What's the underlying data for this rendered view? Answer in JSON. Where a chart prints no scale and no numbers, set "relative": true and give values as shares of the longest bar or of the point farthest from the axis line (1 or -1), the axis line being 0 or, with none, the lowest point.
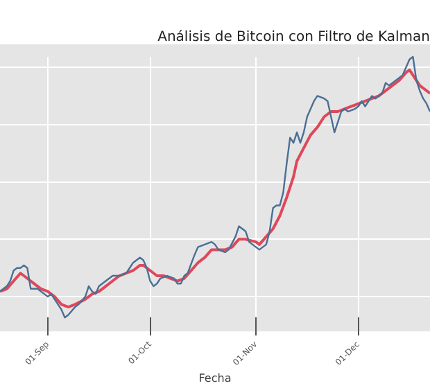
{
  "chart_data": {
    "type": "line",
    "title": "Análisis de Bitcoin con Filtro de Kalman",
    "xlabel": "Fecha",
    "relative": true,
    "grid": true,
    "marker": "none",
    "line_style": "solid",
    "xlim": [
      "--08-18",
      "--12-22"
    ],
    "xticks": [
      {
        "value": "--09-01",
        "label": "01-Sep"
      },
      {
        "value": "--10-01",
        "label": "01-Oct"
      },
      {
        "value": "--11-01",
        "label": "01-Nov"
      },
      {
        "value": "--12-01",
        "label": "01-Dec"
      }
    ],
    "series": [
      {
        "color": "#4a6f94",
        "x": [
          "--08-18",
          "--08-20",
          "--08-21",
          "--08-22",
          "--08-23",
          "--08-24",
          "--08-25",
          "--08-26",
          "--08-27",
          "--08-29",
          "--08-30",
          "--08-31",
          "--09-01",
          "--09-02",
          "--09-03",
          "--09-04",
          "--09-05",
          "--09-06",
          "--09-07",
          "--09-09",
          "--09-10",
          "--09-12",
          "--09-13",
          "--09-14",
          "--09-15",
          "--09-16",
          "--09-18",
          "--09-19",
          "--09-20",
          "--09-22",
          "--09-24",
          "--09-25",
          "--09-26",
          "--09-28",
          "--09-29",
          "--09-30",
          "--10-01",
          "--10-02",
          "--10-03",
          "--10-04",
          "--10-06",
          "--10-08",
          "--10-09",
          "--10-10",
          "--10-11",
          "--10-12",
          "--10-14",
          "--10-15",
          "--10-17",
          "--10-19",
          "--10-20",
          "--10-21",
          "--10-23",
          "--10-24",
          "--10-26",
          "--10-27",
          "--10-29",
          "--10-30",
          "--11-01",
          "--11-02",
          "--11-04",
          "--11-05",
          "--11-06",
          "--11-07",
          "--11-08",
          "--11-09",
          "--11-10",
          "--11-11",
          "--11-12",
          "--11-13",
          "--11-14",
          "--11-15",
          "--11-16",
          "--11-18",
          "--11-19",
          "--11-21",
          "--11-22",
          "--11-23",
          "--11-24",
          "--11-25",
          "--11-26",
          "--11-27",
          "--11-28",
          "--11-30",
          "--12-01",
          "--12-02",
          "--12-03",
          "--12-05",
          "--12-06",
          "--12-08",
          "--12-09",
          "--12-10",
          "--12-11",
          "--12-13",
          "--12-14",
          "--12-15",
          "--12-16",
          "--12-17",
          "--12-18",
          "--12-19",
          "--12-20",
          "--12-21",
          "--12-22"
        ],
        "values": [
          0.1,
          0.12,
          0.14,
          0.18,
          0.19,
          0.19,
          0.2,
          0.19,
          0.11,
          0.11,
          0.1,
          0.09,
          0.08,
          0.09,
          0.07,
          0.05,
          0.03,
          0,
          0.01,
          0.04,
          0.05,
          0.08,
          0.12,
          0.1,
          0.09,
          0.12,
          0.14,
          0.15,
          0.16,
          0.16,
          0.17,
          0.19,
          0.21,
          0.23,
          0.22,
          0.19,
          0.14,
          0.12,
          0.13,
          0.15,
          0.16,
          0.15,
          0.13,
          0.13,
          0.16,
          0.17,
          0.24,
          0.27,
          0.28,
          0.29,
          0.28,
          0.26,
          0.25,
          0.26,
          0.31,
          0.35,
          0.33,
          0.29,
          0.27,
          0.26,
          0.28,
          0.33,
          0.42,
          0.43,
          0.43,
          0.48,
          0.59,
          0.69,
          0.67,
          0.71,
          0.67,
          0.71,
          0.77,
          0.83,
          0.85,
          0.84,
          0.83,
          0.77,
          0.71,
          0.75,
          0.79,
          0.8,
          0.79,
          0.8,
          0.81,
          0.83,
          0.81,
          0.85,
          0.84,
          0.86,
          0.9,
          0.89,
          0.9,
          0.92,
          0.93,
          0.96,
          0.99,
          1,
          0.91,
          0.87,
          0.84,
          0.82,
          0.79
        ]
      },
      {
        "color": "#e0475a",
        "x": [
          "--08-18",
          "--08-20",
          "--08-22",
          "--08-24",
          "--08-26",
          "--08-28",
          "--08-30",
          "--09-01",
          "--09-03",
          "--09-05",
          "--09-07",
          "--09-09",
          "--09-12",
          "--09-14",
          "--09-16",
          "--09-18",
          "--09-20",
          "--09-22",
          "--09-24",
          "--09-26",
          "--09-28",
          "--09-29",
          "--10-01",
          "--10-03",
          "--10-05",
          "--10-07",
          "--10-09",
          "--10-11",
          "--10-13",
          "--10-15",
          "--10-17",
          "--10-19",
          "--10-21",
          "--10-23",
          "--10-25",
          "--10-27",
          "--10-29",
          "--11-01",
          "--11-02",
          "--11-04",
          "--11-06",
          "--11-08",
          "--11-10",
          "--11-12",
          "--11-13",
          "--11-15",
          "--11-17",
          "--11-19",
          "--11-21",
          "--11-23",
          "--11-25",
          "--11-27",
          "--11-29",
          "--12-01",
          "--12-03",
          "--12-05",
          "--12-07",
          "--12-09",
          "--12-11",
          "--12-13",
          "--12-15",
          "--12-16",
          "--12-17",
          "--12-19",
          "--12-22"
        ],
        "values": [
          0.1,
          0.11,
          0.14,
          0.17,
          0.15,
          0.13,
          0.11,
          0.1,
          0.08,
          0.05,
          0.04,
          0.05,
          0.07,
          0.09,
          0.1,
          0.12,
          0.14,
          0.16,
          0.17,
          0.18,
          0.2,
          0.2,
          0.18,
          0.16,
          0.16,
          0.15,
          0.14,
          0.15,
          0.18,
          0.21,
          0.23,
          0.26,
          0.26,
          0.26,
          0.27,
          0.3,
          0.3,
          0.29,
          0.28,
          0.31,
          0.34,
          0.39,
          0.46,
          0.54,
          0.6,
          0.65,
          0.7,
          0.73,
          0.77,
          0.79,
          0.79,
          0.8,
          0.81,
          0.82,
          0.83,
          0.84,
          0.85,
          0.87,
          0.89,
          0.91,
          0.94,
          0.95,
          0.93,
          0.89,
          0.86
        ]
      }
    ]
  }
}
